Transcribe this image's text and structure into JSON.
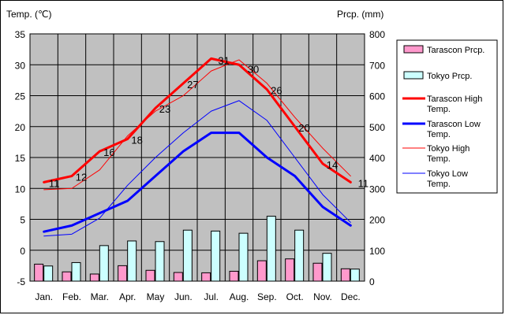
{
  "chart_data": {
    "type": "line",
    "categories": [
      "Jan.",
      "Feb.",
      "Mar.",
      "Apr.",
      "May",
      "Jun.",
      "Jul.",
      "Aug.",
      "Sep.",
      "Oct.",
      "Nov.",
      "Dec."
    ],
    "y_left_label": "Temp. (℃)",
    "y_right_label": "Prcp. (mm)",
    "y_left_range": [
      -5,
      35
    ],
    "y_left_ticks": [
      -5,
      0,
      5,
      10,
      15,
      20,
      25,
      30,
      35
    ],
    "y_right_range": [
      0,
      800
    ],
    "y_right_ticks": [
      0,
      100,
      200,
      300,
      400,
      500,
      600,
      700,
      800
    ],
    "grid": true,
    "legend_position": "right",
    "series": [
      {
        "key": "tarascon_prcp",
        "name": "Tarascon Prcp.",
        "kind": "bar",
        "axis": "right",
        "color": "#ff99cc",
        "values": [
          55,
          30,
          23,
          50,
          35,
          28,
          27,
          32,
          66,
          72,
          58,
          40
        ]
      },
      {
        "key": "tokyo_prcp",
        "name": "Tokyo Prcp.",
        "kind": "bar",
        "axis": "right",
        "color": "#ccffff",
        "values": [
          49,
          60,
          115,
          130,
          128,
          165,
          162,
          155,
          210,
          165,
          90,
          39
        ]
      },
      {
        "key": "tarascon_high",
        "name": "Tarascon High Temp.",
        "kind": "line",
        "axis": "left",
        "color": "#ff0000",
        "width": 3,
        "values": [
          11,
          12,
          16,
          18,
          23,
          27,
          31,
          30,
          26,
          20,
          14,
          11
        ]
      },
      {
        "key": "tarascon_low",
        "name": "Tarascon Low Temp.",
        "kind": "line",
        "axis": "left",
        "color": "#0000ff",
        "width": 3,
        "values": [
          3,
          4,
          6,
          8,
          12,
          16,
          19,
          19,
          15,
          12,
          7,
          4
        ]
      },
      {
        "key": "tokyo_high",
        "name": "Tokyo High Temp.",
        "kind": "line",
        "axis": "left",
        "color": "#ff0000",
        "width": 1,
        "values": [
          9.8,
          10,
          13,
          18.5,
          22.5,
          25,
          29,
          30.8,
          27,
          21.5,
          16.5,
          12
        ]
      },
      {
        "key": "tokyo_low",
        "name": "Tokyo Low Temp.",
        "kind": "line",
        "axis": "left",
        "color": "#0000ff",
        "width": 1,
        "values": [
          2.3,
          2.6,
          5.2,
          10.5,
          15,
          19,
          22.5,
          24.2,
          21,
          15,
          9,
          4.5
        ]
      }
    ],
    "data_labels": {
      "series": "tarascon_high",
      "values": [
        "11",
        "12",
        "16",
        "18",
        "23",
        "27",
        "31",
        "30",
        "26",
        "20",
        "14",
        "11"
      ]
    }
  }
}
